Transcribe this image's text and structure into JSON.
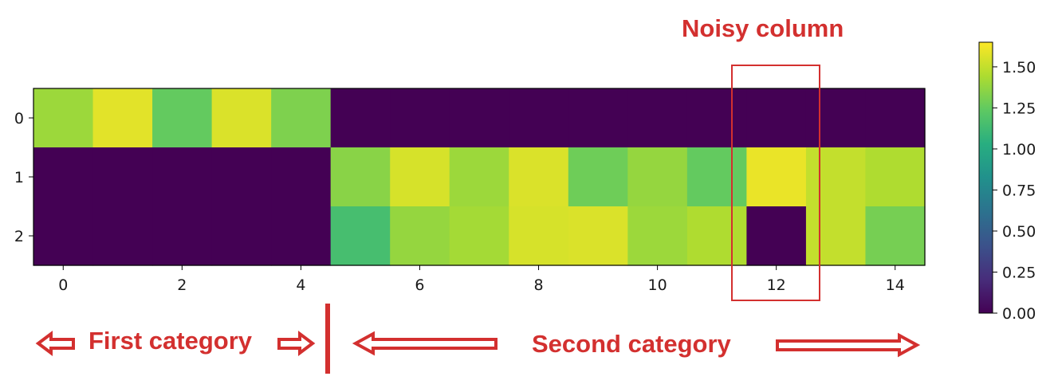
{
  "chart_data": {
    "type": "heatmap",
    "title": "",
    "xlabel": "",
    "ylabel": "",
    "x_ticks": [
      0,
      2,
      4,
      6,
      8,
      10,
      12,
      14
    ],
    "y_ticks": [
      0,
      1,
      2
    ],
    "n_cols": 15,
    "n_rows": 3,
    "values": [
      [
        1.4,
        1.58,
        1.25,
        1.56,
        1.32,
        0,
        0,
        0,
        0,
        0,
        0,
        0,
        0,
        0,
        0
      ],
      [
        0,
        0,
        0,
        0,
        0,
        1.35,
        1.55,
        1.4,
        1.56,
        1.28,
        1.38,
        1.25,
        1.6,
        1.5,
        1.45
      ],
      [
        0,
        0,
        0,
        0,
        0,
        1.15,
        1.38,
        1.42,
        1.55,
        1.56,
        1.4,
        1.45,
        0,
        1.5,
        1.3
      ]
    ],
    "colorbar": {
      "colormap": "viridis",
      "range": [
        0,
        1.65
      ],
      "ticks": [
        "0.00",
        "0.25",
        "0.50",
        "0.75",
        "1.00",
        "1.25",
        "1.50"
      ]
    }
  },
  "annotations": {
    "noisy_column_label": "Noisy column",
    "noisy_column_index": 12,
    "first_category_label": "First category",
    "second_category_label": "Second category",
    "color": "#d3302f"
  }
}
